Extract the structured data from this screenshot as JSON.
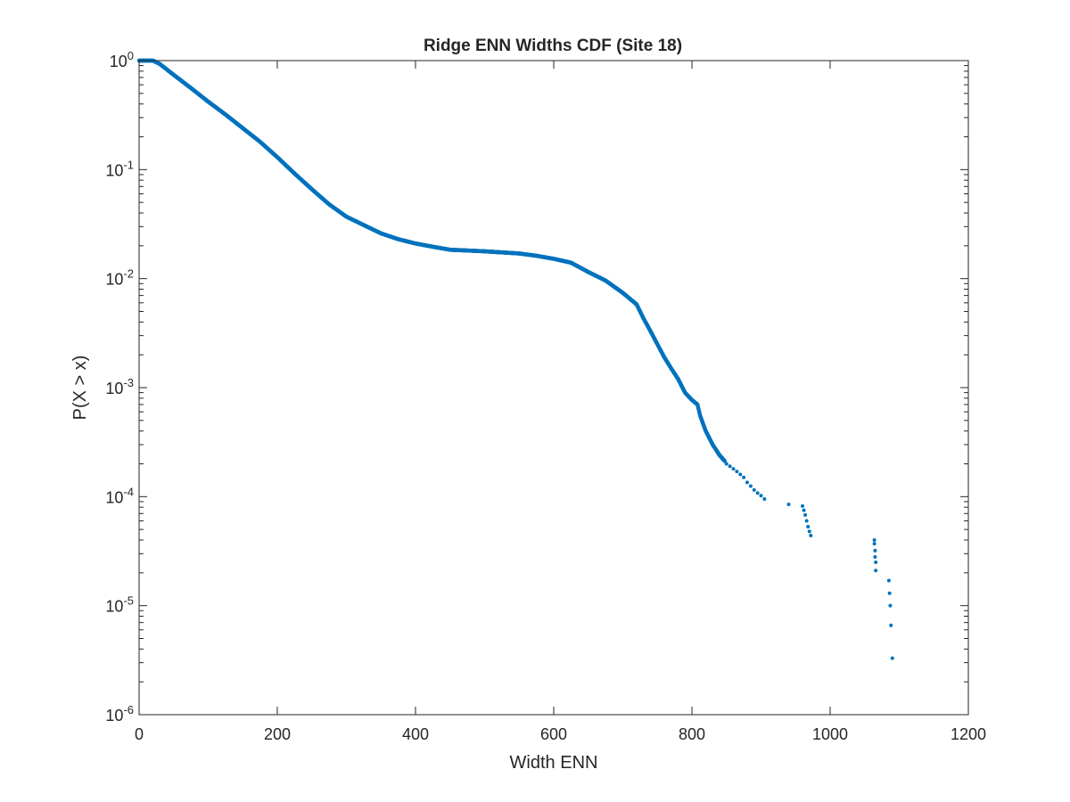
{
  "chart_data": {
    "type": "scatter",
    "title": "Ridge ENN Widths CDF (Site 18)",
    "xlabel": "Width ENN",
    "ylabel": "P(X > x)",
    "xlim": [
      0,
      1200
    ],
    "ylim": [
      1e-06,
      1
    ],
    "yscale": "log",
    "grid": false,
    "box": true,
    "marker_color": "#0072BD",
    "x_ticks": [
      {
        "value": 0,
        "label": "0"
      },
      {
        "value": 200,
        "label": "200"
      },
      {
        "value": 400,
        "label": "400"
      },
      {
        "value": 600,
        "label": "600"
      },
      {
        "value": 800,
        "label": "800"
      },
      {
        "value": 1000,
        "label": "1000"
      },
      {
        "value": 1200,
        "label": "1200"
      }
    ],
    "y_ticks": [
      {
        "value": 1,
        "base": "10",
        "exp": "0"
      },
      {
        "value": 0.1,
        "base": "10",
        "exp": "-1"
      },
      {
        "value": 0.01,
        "base": "10",
        "exp": "-2"
      },
      {
        "value": 0.001,
        "base": "10",
        "exp": "-3"
      },
      {
        "value": 0.0001,
        "base": "10",
        "exp": "-4"
      },
      {
        "value": 1e-05,
        "base": "10",
        "exp": "-5"
      },
      {
        "value": 1e-06,
        "base": "10",
        "exp": "-6"
      }
    ],
    "curve": [
      [
        0,
        1.0
      ],
      [
        10,
        1.0
      ],
      [
        20,
        1.0
      ],
      [
        30,
        0.93
      ],
      [
        50,
        0.74
      ],
      [
        75,
        0.56
      ],
      [
        100,
        0.42
      ],
      [
        125,
        0.32
      ],
      [
        150,
        0.24
      ],
      [
        175,
        0.18
      ],
      [
        200,
        0.13
      ],
      [
        225,
        0.092
      ],
      [
        250,
        0.066
      ],
      [
        275,
        0.048
      ],
      [
        300,
        0.037
      ],
      [
        325,
        0.031
      ],
      [
        350,
        0.026
      ],
      [
        375,
        0.023
      ],
      [
        400,
        0.021
      ],
      [
        425,
        0.0196
      ],
      [
        450,
        0.0184
      ],
      [
        500,
        0.0178
      ],
      [
        550,
        0.017
      ],
      [
        575,
        0.0162
      ],
      [
        600,
        0.0152
      ],
      [
        625,
        0.014
      ],
      [
        650,
        0.0115
      ],
      [
        675,
        0.0096
      ],
      [
        700,
        0.0074
      ],
      [
        720,
        0.0058
      ],
      [
        730,
        0.0043
      ],
      [
        740,
        0.0033
      ],
      [
        750,
        0.0025
      ],
      [
        760,
        0.0019
      ],
      [
        770,
        0.0015
      ],
      [
        780,
        0.0012
      ],
      [
        790,
        0.0009
      ],
      [
        800,
        0.00077
      ],
      [
        808,
        0.0007
      ],
      [
        812,
        0.00055
      ],
      [
        820,
        0.0004
      ],
      [
        830,
        0.0003
      ],
      [
        840,
        0.00024
      ],
      [
        848,
        0.00021
      ]
    ],
    "points": [
      [
        850,
        0.0002
      ],
      [
        855,
        0.00019
      ],
      [
        860,
        0.00018
      ],
      [
        865,
        0.00017
      ],
      [
        870,
        0.00016
      ],
      [
        875,
        0.00015
      ],
      [
        880,
        0.000135
      ],
      [
        885,
        0.000125
      ],
      [
        890,
        0.000115
      ],
      [
        895,
        0.000108
      ],
      [
        900,
        0.000102
      ],
      [
        905,
        9.5e-05
      ],
      [
        940,
        8.5e-05
      ],
      [
        960,
        8.2e-05
      ],
      [
        962,
        7.5e-05
      ],
      [
        964,
        6.8e-05
      ],
      [
        966,
        6e-05
      ],
      [
        968,
        5.3e-05
      ],
      [
        970,
        4.8e-05
      ],
      [
        972,
        4.4e-05
      ],
      [
        1064,
        4e-05
      ],
      [
        1064,
        3.7e-05
      ],
      [
        1065,
        3.2e-05
      ],
      [
        1065,
        2.8e-05
      ],
      [
        1066,
        2.5e-05
      ],
      [
        1066,
        2.1e-05
      ],
      [
        1085,
        1.7e-05
      ],
      [
        1086,
        1.3e-05
      ],
      [
        1087,
        1e-05
      ],
      [
        1088,
        6.6e-06
      ],
      [
        1090,
        3.3e-06
      ]
    ]
  }
}
